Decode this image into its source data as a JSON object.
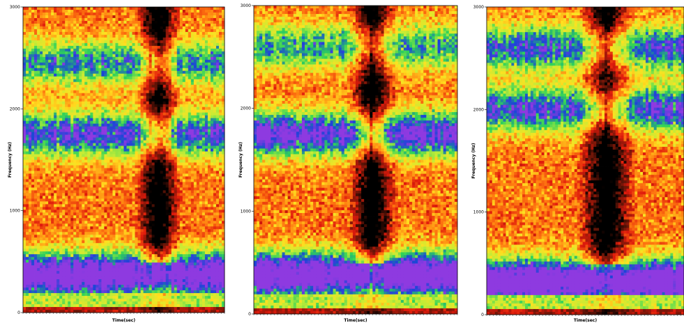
{
  "chart_data": [
    {
      "type": "heatmap",
      "xlabel": "Time(sec)",
      "ylabel": "Frequency (Hz)",
      "ylim": [
        0,
        3000
      ],
      "yticks": [
        "0",
        "1000",
        "2000",
        "3000"
      ],
      "colormap": [
        "#000000",
        "#6a1608",
        "#e01a0c",
        "#ff7a10",
        "#ffe020",
        "#c4ec36",
        "#2ed25a",
        "#1c44d8",
        "#8e3ae0"
      ],
      "formant_bands_hz": [
        {
          "center": 370,
          "strength": 0.88
        },
        {
          "center": 1750,
          "strength": 0.62
        },
        {
          "center": 2450,
          "strength": 0.5
        }
      ],
      "silent_gap_fraction": [
        [
          0.55,
          0.78
        ]
      ]
    },
    {
      "type": "heatmap",
      "xlabel": "Time(sec)",
      "ylabel": "Frequency (Hz)",
      "ylim": [
        0,
        3000
      ],
      "yticks": [
        "0",
        "1000",
        "2000",
        "3000"
      ],
      "colormap": [
        "#000000",
        "#6a1608",
        "#e01a0c",
        "#ff7a10",
        "#ffe020",
        "#c4ec36",
        "#2ed25a",
        "#1c44d8",
        "#8e3ae0"
      ],
      "formant_bands_hz": [
        {
          "center": 380,
          "strength": 0.9
        },
        {
          "center": 1750,
          "strength": 0.7
        },
        {
          "center": 2600,
          "strength": 0.45
        }
      ],
      "silent_gap_fraction": [
        [
          0.45,
          0.7
        ]
      ]
    },
    {
      "type": "heatmap",
      "xlabel": "Time(sec)",
      "ylabel": "Frequency (Hz)",
      "ylim": [
        0,
        3000
      ],
      "yticks": [
        "0",
        "1000",
        "2000",
        "3000"
      ],
      "colormap": [
        "#000000",
        "#6a1608",
        "#e01a0c",
        "#ff7a10",
        "#ffe020",
        "#c4ec36",
        "#2ed25a",
        "#1c44d8",
        "#8e3ae0"
      ],
      "formant_bands_hz": [
        {
          "center": 320,
          "strength": 0.92
        },
        {
          "center": 2000,
          "strength": 0.6
        },
        {
          "center": 2600,
          "strength": 0.55
        }
      ],
      "silent_gap_fraction": [
        [
          0.45,
          0.75
        ]
      ]
    }
  ]
}
